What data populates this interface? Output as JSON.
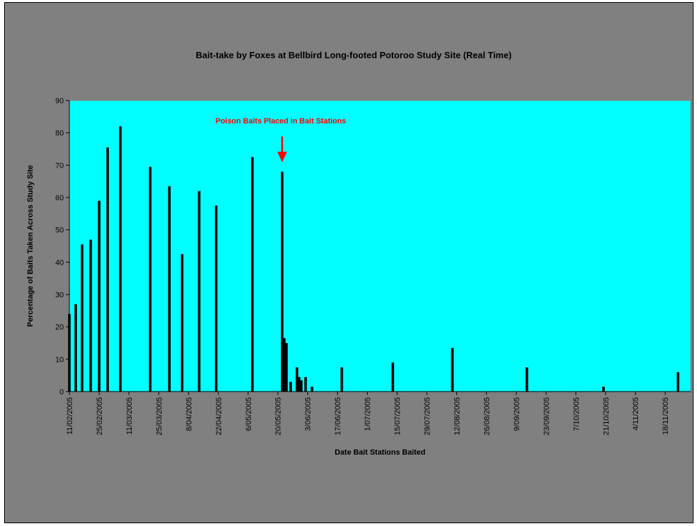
{
  "chart_data": {
    "type": "bar",
    "title": "Bait-take by Foxes at Bellbird Long-footed Potoroo Study Site (Real Time)",
    "xlabel": "Date Bait Stations Baited",
    "ylabel": "Percentage of Baits Taken Across Study Site",
    "x_range": [
      "2005-02-11",
      "2005-11-30"
    ],
    "ylim": [
      0,
      90
    ],
    "yticks": [
      0,
      10,
      20,
      30,
      40,
      50,
      60,
      70,
      80,
      90
    ],
    "xtick_labels": [
      "11/02/2005",
      "25/02/2005",
      "11/03/2005",
      "25/03/2005",
      "8/04/2005",
      "22/04/2005",
      "6/05/2005",
      "20/05/2005",
      "3/06/2005",
      "17/06/2005",
      "1/07/2005",
      "15/07/2005",
      "29/07/2005",
      "12/08/2005",
      "26/08/2005",
      "9/09/2005",
      "23/09/2005",
      "7/10/2005",
      "21/10/2005",
      "4/11/2005",
      "18/11/2005"
    ],
    "plot_background": "#00ffff",
    "bar_color": "#000000",
    "grid": false,
    "legend": "none",
    "points": [
      {
        "date": "2005-02-11",
        "value": 24
      },
      {
        "date": "2005-02-14",
        "value": 27
      },
      {
        "date": "2005-02-17",
        "value": 45.5
      },
      {
        "date": "2005-02-21",
        "value": 47
      },
      {
        "date": "2005-02-25",
        "value": 59
      },
      {
        "date": "2005-03-01",
        "value": 75.5
      },
      {
        "date": "2005-03-07",
        "value": 82
      },
      {
        "date": "2005-03-21",
        "value": 69.5
      },
      {
        "date": "2005-03-30",
        "value": 63.5
      },
      {
        "date": "2005-04-05",
        "value": 42.5
      },
      {
        "date": "2005-04-13",
        "value": 62
      },
      {
        "date": "2005-04-21",
        "value": 57.5
      },
      {
        "date": "2005-05-08",
        "value": 72.5
      },
      {
        "date": "2005-05-22",
        "value": 68
      },
      {
        "date": "2005-05-23",
        "value": 16.5
      },
      {
        "date": "2005-05-24",
        "value": 15
      },
      {
        "date": "2005-05-26",
        "value": 3
      },
      {
        "date": "2005-05-29",
        "value": 7.5
      },
      {
        "date": "2005-05-30",
        "value": 4.5
      },
      {
        "date": "2005-05-31",
        "value": 3.5
      },
      {
        "date": "2005-06-02",
        "value": 4.5
      },
      {
        "date": "2005-06-05",
        "value": 1.5
      },
      {
        "date": "2005-06-19",
        "value": 7.5
      },
      {
        "date": "2005-07-13",
        "value": 9
      },
      {
        "date": "2005-08-10",
        "value": 13.5
      },
      {
        "date": "2005-09-14",
        "value": 7.5
      },
      {
        "date": "2005-10-20",
        "value": 1.5
      },
      {
        "date": "2005-11-24",
        "value": 6
      }
    ],
    "annotations": [
      {
        "text": "Poison Baits Placed in Bait Stations",
        "date": "2005-05-22",
        "color": "#ff0000",
        "arrow": true
      }
    ]
  }
}
